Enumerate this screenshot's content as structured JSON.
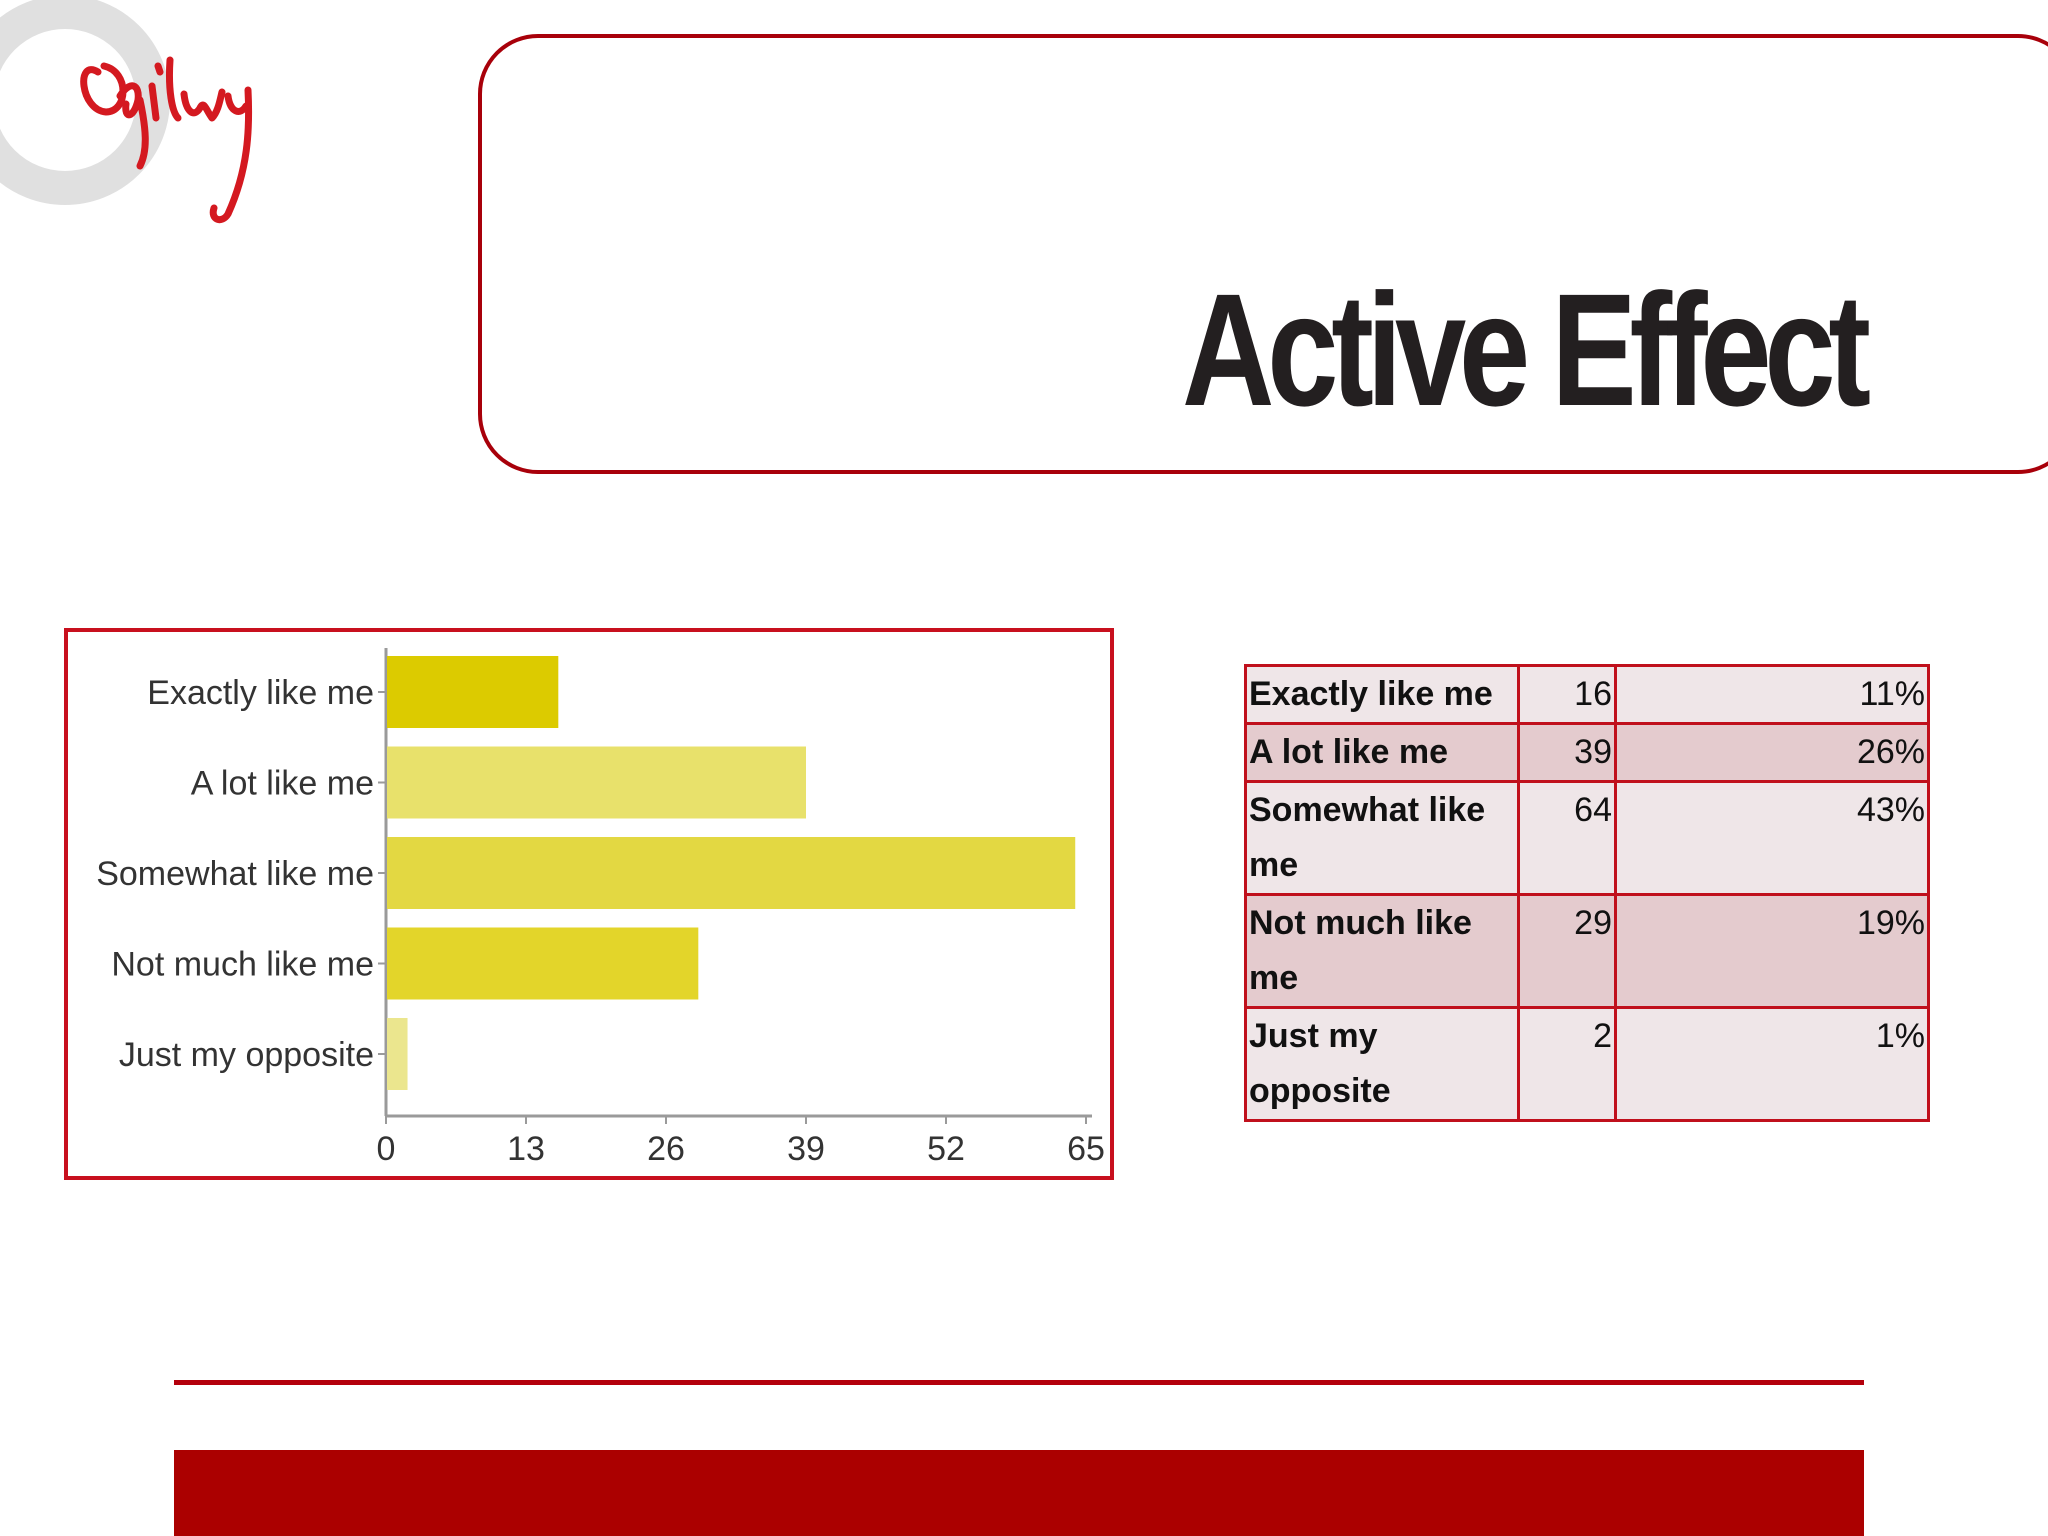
{
  "brand": {
    "logo_text": "Ogilvy",
    "logo_color": "#d41920",
    "accent": "#a8000a"
  },
  "slide": {
    "title": "Active Effect"
  },
  "chart_data": {
    "type": "bar",
    "orientation": "horizontal",
    "categories": [
      "Exactly like me",
      "A lot like me",
      "Somewhat like me",
      "Not much like me",
      "Just my opposite"
    ],
    "values": [
      16,
      39,
      64,
      29,
      2
    ],
    "colors": [
      "#dccb00",
      "#e8e16b",
      "#e3d842",
      "#e3d52a",
      "#ebe68e"
    ],
    "xticks": [
      0,
      13,
      26,
      39,
      52,
      65
    ],
    "xlim": [
      0,
      65
    ],
    "title": "",
    "xlabel": "",
    "ylabel": "",
    "grid": false,
    "legend": "none"
  },
  "table": {
    "rows": [
      {
        "label": "Exactly like me",
        "count": "16",
        "percent": "11%"
      },
      {
        "label": "A lot like me",
        "count": "39",
        "percent": "26%"
      },
      {
        "label": "Somewhat like me",
        "count": "64",
        "percent": "43%"
      },
      {
        "label": "Not much like me",
        "count": "29",
        "percent": "19%"
      },
      {
        "label": "Just my opposite",
        "count": "2",
        "percent": "1%"
      }
    ]
  }
}
